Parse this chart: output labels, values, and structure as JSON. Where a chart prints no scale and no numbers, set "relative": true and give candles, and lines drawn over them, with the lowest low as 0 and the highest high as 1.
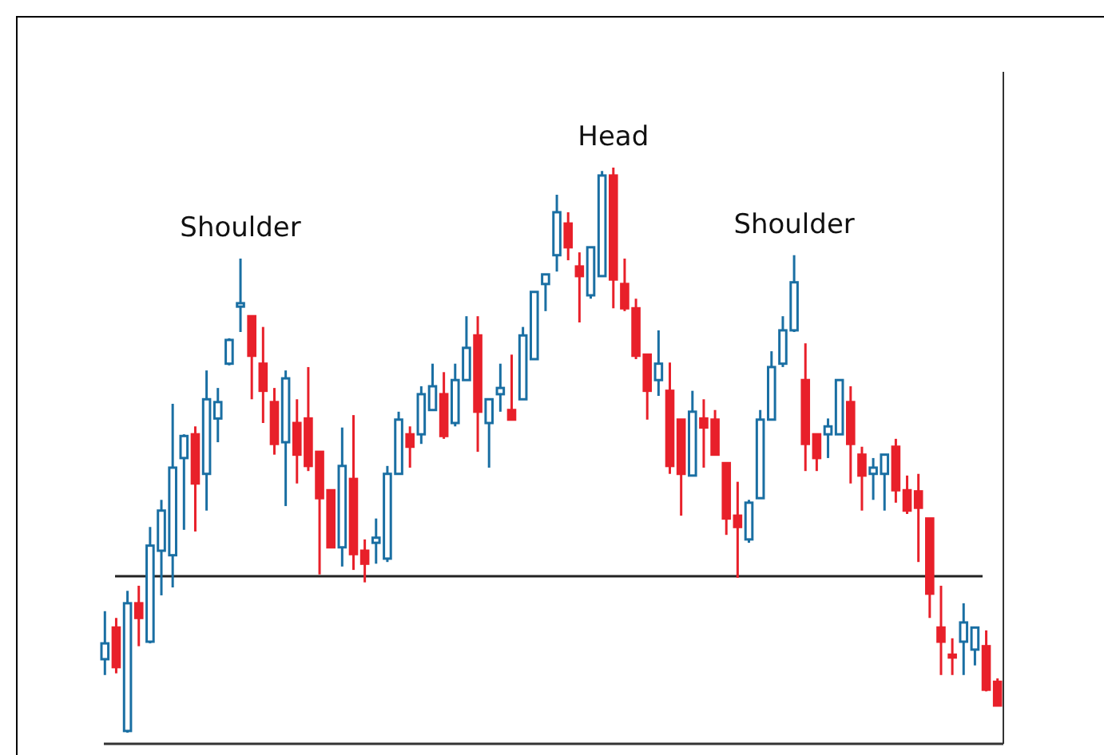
{
  "chart_data": {
    "type": "candlestick",
    "relative": true,
    "colors": [
      "#1a6fa3",
      "#e8202a",
      "#1a6fa3",
      "#e8202a",
      "#1a6fa3",
      "#1a6fa3",
      "#1a6fa3",
      "#1a6fa3",
      "#e8202a",
      "#1a6fa3",
      "#1a6fa3",
      "#1a6fa3",
      "#1a6fa3",
      "#e8202a",
      "#e8202a",
      "#e8202a",
      "#1a6fa3",
      "#e8202a",
      "#e8202a",
      "#e8202a",
      "#e8202a",
      "#1a6fa3",
      "#e8202a",
      "#e8202a",
      "#1a6fa3",
      "#1a6fa3",
      "#1a6fa3",
      "#e8202a",
      "#1a6fa3",
      "#1a6fa3",
      "#e8202a",
      "#1a6fa3",
      "#1a6fa3",
      "#e8202a",
      "#1a6fa3",
      "#1a6fa3",
      "#e8202a",
      "#1a6fa3",
      "#1a6fa3",
      "#1a6fa3",
      "#1a6fa3",
      "#e8202a",
      "#e8202a",
      "#1a6fa3",
      "#1a6fa3",
      "#e8202a",
      "#e8202a",
      "#e8202a",
      "#e8202a",
      "#1a6fa3",
      "#e8202a",
      "#e8202a",
      "#1a6fa3",
      "#e8202a",
      "#e8202a",
      "#e8202a",
      "#e8202a",
      "#1a6fa3",
      "#1a6fa3",
      "#1a6fa3",
      "#1a6fa3",
      "#1a6fa3",
      "#e8202a",
      "#e8202a",
      "#1a6fa3",
      "#1a6fa3",
      "#e8202a",
      "#e8202a",
      "#1a6fa3",
      "#1a6fa3",
      "#e8202a",
      "#e8202a",
      "#e8202a",
      "#e8202a",
      "#e8202a",
      "#e8202a",
      "#1a6fa3",
      "#1a6fa3",
      "#e8202a",
      "#e8202a"
    ],
    "categories": [
      null,
      null,
      null,
      null,
      null,
      null,
      null,
      null,
      null,
      null,
      null,
      null,
      null,
      null,
      null,
      null,
      null,
      null,
      null,
      null,
      null,
      null,
      null,
      null,
      null,
      null,
      null,
      null,
      null,
      null,
      null,
      null,
      null,
      null,
      null,
      null,
      null,
      null,
      null,
      null,
      null,
      null,
      null,
      null,
      null,
      null,
      null,
      null,
      null,
      null,
      null,
      null,
      null,
      null,
      null,
      null,
      null,
      null,
      null,
      null,
      null,
      null,
      null,
      null,
      null,
      null,
      null,
      null,
      null,
      null,
      null,
      null,
      null,
      null,
      null,
      null,
      null,
      null,
      null,
      null
    ],
    "ohlc": [
      [
        0.13,
        0.215,
        0.102,
        0.158
      ],
      [
        0.186,
        0.203,
        0.105,
        0.116
      ],
      [
        0.003,
        0.251,
        0,
        0.229
      ],
      [
        0.229,
        0.26,
        0.153,
        0.203
      ],
      [
        0.161,
        0.364,
        0.158,
        0.331
      ],
      [
        0.322,
        0.412,
        0.243,
        0.393
      ],
      [
        0.314,
        0.582,
        0.257,
        0.469
      ],
      [
        0.486,
        0.528,
        0.359,
        0.525
      ],
      [
        0.528,
        0.542,
        0.356,
        0.441
      ],
      [
        0.458,
        0.641,
        0.393,
        0.59
      ],
      [
        0.556,
        0.61,
        0.514,
        0.585
      ],
      [
        0.653,
        0.698,
        0.65,
        0.695
      ],
      [
        0.754,
        0.839,
        0.709,
        0.76
      ],
      [
        0.737,
        0.737,
        0.59,
        0.667
      ],
      [
        0.653,
        0.718,
        0.548,
        0.605
      ],
      [
        0.585,
        0.61,
        0.492,
        0.511
      ],
      [
        0.514,
        0.641,
        0.401,
        0.627
      ],
      [
        0.548,
        0.59,
        0.441,
        0.492
      ],
      [
        0.556,
        0.647,
        0.463,
        0.472
      ],
      [
        0.497,
        0.497,
        0.28,
        0.415
      ],
      [
        0.429,
        0.429,
        0.328,
        0.328
      ],
      [
        0.328,
        0.54,
        0.294,
        0.472
      ],
      [
        0.449,
        0.562,
        0.288,
        0.316
      ],
      [
        0.322,
        0.342,
        0.266,
        0.299
      ],
      [
        0.336,
        0.379,
        0.299,
        0.345
      ],
      [
        0.308,
        0.472,
        0.302,
        0.458
      ],
      [
        0.458,
        0.568,
        0.458,
        0.554
      ],
      [
        0.528,
        0.542,
        0.469,
        0.506
      ],
      [
        0.528,
        0.613,
        0.511,
        0.599
      ],
      [
        0.571,
        0.653,
        0.571,
        0.613
      ],
      [
        0.599,
        0.638,
        0.52,
        0.525
      ],
      [
        0.548,
        0.653,
        0.542,
        0.624
      ],
      [
        0.624,
        0.737,
        0.624,
        0.681
      ],
      [
        0.703,
        0.737,
        0.497,
        0.568
      ],
      [
        0.548,
        0.59,
        0.469,
        0.59
      ],
      [
        0.599,
        0.653,
        0.568,
        0.61
      ],
      [
        0.571,
        0.669,
        0.554,
        0.554
      ],
      [
        0.59,
        0.718,
        0.59,
        0.703
      ],
      [
        0.661,
        0.78,
        0.661,
        0.78
      ],
      [
        0.794,
        0.811,
        0.746,
        0.811
      ],
      [
        0.845,
        0.952,
        0.816,
        0.921
      ],
      [
        0.901,
        0.921,
        0.836,
        0.859
      ],
      [
        0.825,
        0.85,
        0.726,
        0.808
      ],
      [
        0.774,
        0.859,
        0.768,
        0.859
      ],
      [
        0.808,
        0.994,
        0.808,
        0.986
      ],
      [
        0.986,
        1,
        0.751,
        0.802
      ],
      [
        0.794,
        0.839,
        0.746,
        0.751
      ],
      [
        0.751,
        0.768,
        0.661,
        0.667
      ],
      [
        0.669,
        0.669,
        0.554,
        0.605
      ],
      [
        0.624,
        0.712,
        0.596,
        0.653
      ],
      [
        0.605,
        0.655,
        0.458,
        0.472
      ],
      [
        0.554,
        0.554,
        0.384,
        0.458
      ],
      [
        0.455,
        0.605,
        0.455,
        0.568
      ],
      [
        0.556,
        0.59,
        0.469,
        0.54
      ],
      [
        0.554,
        0.571,
        0.492,
        0.492
      ],
      [
        0.477,
        0.477,
        0.35,
        0.379
      ],
      [
        0.384,
        0.444,
        0.274,
        0.364
      ],
      [
        0.342,
        0.412,
        0.336,
        0.407
      ],
      [
        0.415,
        0.571,
        0.415,
        0.554
      ],
      [
        0.554,
        0.675,
        0.554,
        0.647
      ],
      [
        0.653,
        0.737,
        0.647,
        0.712
      ],
      [
        0.712,
        0.845,
        0.709,
        0.797
      ],
      [
        0.624,
        0.689,
        0.463,
        0.511
      ],
      [
        0.528,
        0.528,
        0.463,
        0.486
      ],
      [
        0.528,
        0.556,
        0.486,
        0.542
      ],
      [
        0.528,
        0.624,
        0.528,
        0.624
      ],
      [
        0.585,
        0.613,
        0.441,
        0.511
      ],
      [
        0.492,
        0.506,
        0.393,
        0.455
      ],
      [
        0.458,
        0.486,
        0.412,
        0.469
      ],
      [
        0.458,
        0.492,
        0.393,
        0.492
      ],
      [
        0.506,
        0.52,
        0.407,
        0.429
      ],
      [
        0.429,
        0.455,
        0.387,
        0.393
      ],
      [
        0.427,
        0.458,
        0.302,
        0.398
      ],
      [
        0.379,
        0.379,
        0.203,
        0.246
      ],
      [
        0.186,
        0.26,
        0.102,
        0.161
      ],
      [
        0.138,
        0.167,
        0.102,
        0.133
      ],
      [
        0.161,
        0.229,
        0.102,
        0.195
      ],
      [
        0.147,
        0.186,
        0.119,
        0.186
      ],
      [
        0.153,
        0.181,
        0.073,
        0.076
      ],
      [
        0.09,
        0.096,
        0.048,
        0.048
      ]
    ],
    "ref_lines": [
      {
        "axis": "y",
        "value": 0.277,
        "color": "#222222"
      }
    ],
    "annotations": [
      "Shoulder",
      "Head",
      "Shoulder"
    ]
  }
}
